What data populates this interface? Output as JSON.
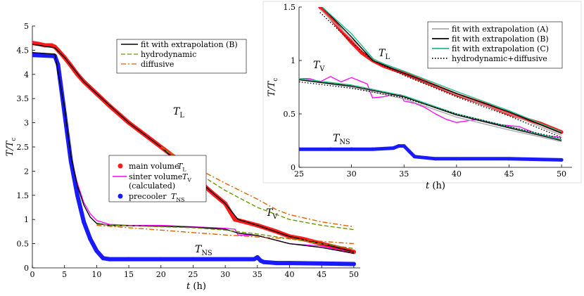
{
  "chart_data": [
    {
      "type": "line",
      "id": "main",
      "xlabel": "t (h)",
      "ylabel": "T/Tc",
      "ylabel_base": "T/T",
      "ylabel_sub": "c",
      "xlim": [
        0,
        51
      ],
      "ylim": [
        0,
        5
      ],
      "xticks": [
        "0",
        "5",
        "10",
        "15",
        "20",
        "25",
        "30",
        "35",
        "40",
        "45",
        "50"
      ],
      "yticks": [
        "0",
        "0.5",
        "1",
        "1.5",
        "2",
        "2.5",
        "3",
        "3.5",
        "4",
        "4.5",
        "5"
      ],
      "curve_labels": [
        {
          "text": "TL",
          "base": "T",
          "sub": "L",
          "series": "main volume"
        },
        {
          "text": "TV",
          "base": "T",
          "sub": "V",
          "series": "sinter volume"
        },
        {
          "text": "TNS",
          "base": "T",
          "sub": "NS",
          "series": "precooler"
        }
      ],
      "legend_top": {
        "position": "top-center",
        "entries": [
          "fit with extrapolation (B)",
          "hydrodynamic",
          "diffusive"
        ]
      },
      "legend_bottom": {
        "position": "center-left",
        "entries": [
          {
            "label": "main volume",
            "sym": "TL",
            "sym_base": "T",
            "sym_sub": "L"
          },
          {
            "label": "sinter volume",
            "sym": "TV",
            "sym_base": "T",
            "sym_sub": "V",
            "label2": "(calculated)"
          },
          {
            "label": "precooler",
            "sym": "TNS",
            "sym_base": "T",
            "sym_sub": "NS"
          }
        ]
      },
      "series": [
        {
          "name": "main volume",
          "style": "dots",
          "color": "#ff1a1a",
          "x": [
            0,
            1,
            2,
            3,
            3.5,
            4,
            5,
            6,
            7,
            8,
            10,
            12,
            15,
            18,
            20,
            22,
            25,
            28,
            30,
            31.5,
            33,
            35,
            38,
            40,
            42,
            45,
            48,
            50
          ],
          "y": [
            4.65,
            4.63,
            4.6,
            4.6,
            4.57,
            4.5,
            4.35,
            4.18,
            4.0,
            3.85,
            3.6,
            3.35,
            3.0,
            2.7,
            2.5,
            2.3,
            1.9,
            1.55,
            1.33,
            1.0,
            0.95,
            0.88,
            0.75,
            0.65,
            0.6,
            0.5,
            0.4,
            0.33
          ]
        },
        {
          "name": "sinter volume",
          "style": "line",
          "color": "#ff00ff",
          "x": [
            0,
            3.5,
            4,
            5,
            6,
            7,
            8,
            9,
            10,
            12,
            15,
            20,
            25,
            30,
            31.5,
            32,
            35,
            38,
            40,
            45,
            50
          ],
          "y": [
            4.45,
            4.42,
            4.3,
            3.3,
            2.3,
            1.75,
            1.35,
            1.12,
            0.98,
            0.9,
            0.88,
            0.88,
            0.85,
            0.82,
            0.8,
            0.68,
            0.67,
            0.57,
            0.5,
            0.45,
            0.3
          ]
        },
        {
          "name": "precooler",
          "style": "dots",
          "color": "#1a1aff",
          "x": [
            0,
            3.5,
            4,
            5,
            6,
            7,
            8,
            9,
            10,
            11,
            12,
            15,
            20,
            25,
            30,
            34.5,
            35,
            35.5,
            36,
            38,
            40,
            45,
            50
          ],
          "y": [
            4.4,
            4.38,
            4.2,
            3.2,
            2.2,
            1.5,
            0.95,
            0.6,
            0.35,
            0.2,
            0.18,
            0.18,
            0.18,
            0.18,
            0.18,
            0.18,
            0.22,
            0.15,
            0.12,
            0.1,
            0.1,
            0.09,
            0.08
          ]
        },
        {
          "name": "fit with extrapolation (B)",
          "style": "solid",
          "color": "#000000",
          "x": [
            0,
            3.5,
            5,
            8,
            10,
            15,
            20,
            25,
            30,
            32,
            35,
            40,
            45,
            50
          ],
          "y": [
            4.62,
            4.55,
            4.35,
            3.85,
            3.6,
            3.0,
            2.5,
            1.9,
            1.33,
            1.0,
            0.88,
            0.65,
            0.5,
            0.33
          ]
        },
        {
          "name": "fit (B) sinter",
          "style": "solid",
          "color": "#000000",
          "x": [
            0,
            3.5,
            5,
            6,
            7,
            8,
            9,
            10,
            12,
            15,
            20,
            25,
            30,
            32,
            35,
            40,
            45,
            50
          ],
          "y": [
            4.45,
            4.42,
            3.3,
            2.3,
            1.7,
            1.3,
            1.05,
            0.92,
            0.88,
            0.87,
            0.86,
            0.84,
            0.8,
            0.72,
            0.67,
            0.5,
            0.42,
            0.3
          ]
        },
        {
          "name": "hydrodynamic",
          "style": "dashed",
          "color": "#669900",
          "x": [
            20,
            25,
            30,
            35,
            40,
            45,
            50
          ],
          "y": [
            2.5,
            2.02,
            1.6,
            1.25,
            1.0,
            0.88,
            0.79
          ]
        },
        {
          "name": "diffusive",
          "style": "dashdot",
          "color": "#e06000",
          "x": [
            20,
            25,
            30,
            35,
            38,
            40,
            45,
            50
          ],
          "y": [
            2.5,
            2.1,
            1.75,
            1.42,
            1.2,
            1.1,
            0.95,
            0.85
          ]
        },
        {
          "name": "hydrodynamic (sinter)",
          "style": "dashed",
          "color": "#669900",
          "x": [
            10,
            15,
            20,
            25,
            30,
            35,
            40,
            45,
            50
          ],
          "y": [
            0.9,
            0.87,
            0.85,
            0.83,
            0.78,
            0.7,
            0.6,
            0.5,
            0.4
          ]
        },
        {
          "name": "diffusive (sinter)",
          "style": "dashdot",
          "color": "#e06000",
          "x": [
            10,
            15,
            20,
            25,
            30,
            35,
            40,
            45,
            50
          ],
          "y": [
            0.88,
            0.83,
            0.78,
            0.73,
            0.68,
            0.64,
            0.6,
            0.55,
            0.5
          ]
        }
      ]
    },
    {
      "type": "line",
      "id": "inset",
      "xlabel": "t (h)",
      "ylabel": "T/Tc",
      "ylabel_base": "T/T",
      "ylabel_sub": "c",
      "xlim": [
        25,
        51
      ],
      "ylim": [
        0,
        1.5
      ],
      "xticks": [
        "25",
        "30",
        "35",
        "40",
        "45",
        "50"
      ],
      "yticks": [
        "0",
        "0.5",
        "1",
        "1.5"
      ],
      "curve_labels": [
        {
          "text": "TL",
          "base": "T",
          "sub": "L",
          "series": "main volume"
        },
        {
          "text": "TV",
          "base": "T",
          "sub": "V",
          "series": "sinter volume"
        },
        {
          "text": "TNS",
          "base": "T",
          "sub": "NS",
          "series": "precooler"
        }
      ],
      "legend": {
        "position": "top-right",
        "entries": [
          "fit with extrapolation (A)",
          "fit with extrapolation (B)",
          "fit with extrapolation (C)",
          "hydrodynamic+diffusive"
        ]
      },
      "series": [
        {
          "name": "main volume",
          "style": "dots",
          "color": "#ff1a1a",
          "x": [
            27,
            28,
            29,
            30,
            31,
            32,
            33,
            35,
            37,
            40,
            43,
            45,
            48,
            50
          ],
          "y": [
            1.5,
            1.4,
            1.28,
            1.17,
            1.07,
            1.0,
            0.95,
            0.88,
            0.8,
            0.68,
            0.58,
            0.5,
            0.41,
            0.33
          ]
        },
        {
          "name": "sinter volume",
          "style": "line",
          "color": "#ff00ff",
          "x": [
            25,
            26,
            27,
            28,
            29,
            30,
            31,
            31.5,
            31.8,
            32,
            33,
            34,
            34.7,
            35,
            36,
            37,
            38,
            39,
            40,
            42,
            44,
            46,
            48,
            50
          ],
          "y": [
            0.83,
            0.83,
            0.8,
            0.85,
            0.8,
            0.84,
            0.8,
            0.78,
            0.7,
            0.65,
            0.66,
            0.68,
            0.68,
            0.62,
            0.6,
            0.56,
            0.5,
            0.45,
            0.42,
            0.45,
            0.4,
            0.38,
            0.3,
            0.28
          ]
        },
        {
          "name": "precooler",
          "style": "dots",
          "color": "#1a1aff",
          "x": [
            25,
            28,
            30,
            32,
            34,
            34.5,
            35,
            35.5,
            36,
            38,
            40,
            45,
            50
          ],
          "y": [
            0.17,
            0.17,
            0.17,
            0.17,
            0.18,
            0.2,
            0.2,
            0.15,
            0.1,
            0.08,
            0.08,
            0.08,
            0.07
          ]
        },
        {
          "name": "fit with extrapolation (A)",
          "style": "solid",
          "color": "#aaaaaa",
          "x": [
            27,
            30,
            32,
            35,
            40,
            45,
            50
          ],
          "y": [
            1.48,
            1.2,
            1.02,
            0.88,
            0.68,
            0.5,
            0.3
          ]
        },
        {
          "name": "fit with extrapolation (B)",
          "style": "solid",
          "color": "#000000",
          "x": [
            27,
            30,
            32,
            35,
            40,
            45,
            50
          ],
          "y": [
            1.52,
            1.22,
            1.0,
            0.88,
            0.69,
            0.52,
            0.32
          ]
        },
        {
          "name": "fit with extrapolation (C)",
          "style": "solid",
          "color": "#1abf8c",
          "x": [
            27.2,
            30,
            32.2,
            35,
            40,
            45,
            50
          ],
          "y": [
            1.5,
            1.25,
            1.0,
            0.9,
            0.71,
            0.53,
            0.33
          ]
        },
        {
          "name": "hydrodynamic+diffusive",
          "style": "dotted",
          "color": "#000000",
          "x": [
            27,
            30,
            32,
            35,
            40,
            45,
            50
          ],
          "y": [
            1.45,
            1.17,
            1.0,
            0.86,
            0.66,
            0.48,
            0.28
          ]
        },
        {
          "name": "fit (A) sinter",
          "style": "solid",
          "color": "#aaaaaa",
          "x": [
            25,
            30,
            35,
            40,
            45,
            50
          ],
          "y": [
            0.82,
            0.75,
            0.64,
            0.47,
            0.35,
            0.24
          ]
        },
        {
          "name": "fit (B) sinter",
          "style": "solid",
          "color": "#000000",
          "x": [
            25,
            30,
            35,
            40,
            45,
            50
          ],
          "y": [
            0.82,
            0.76,
            0.66,
            0.49,
            0.37,
            0.25
          ]
        },
        {
          "name": "fit (C) sinter",
          "style": "solid",
          "color": "#1abf8c",
          "x": [
            25,
            30,
            35,
            40,
            45,
            50
          ],
          "y": [
            0.83,
            0.77,
            0.67,
            0.5,
            0.38,
            0.26
          ]
        },
        {
          "name": "hydrodynamic+diffusive (sinter)",
          "style": "dotted",
          "color": "#000000",
          "x": [
            25,
            30,
            35,
            40,
            45,
            50
          ],
          "y": [
            0.8,
            0.74,
            0.65,
            0.5,
            0.38,
            0.27
          ]
        }
      ]
    }
  ]
}
